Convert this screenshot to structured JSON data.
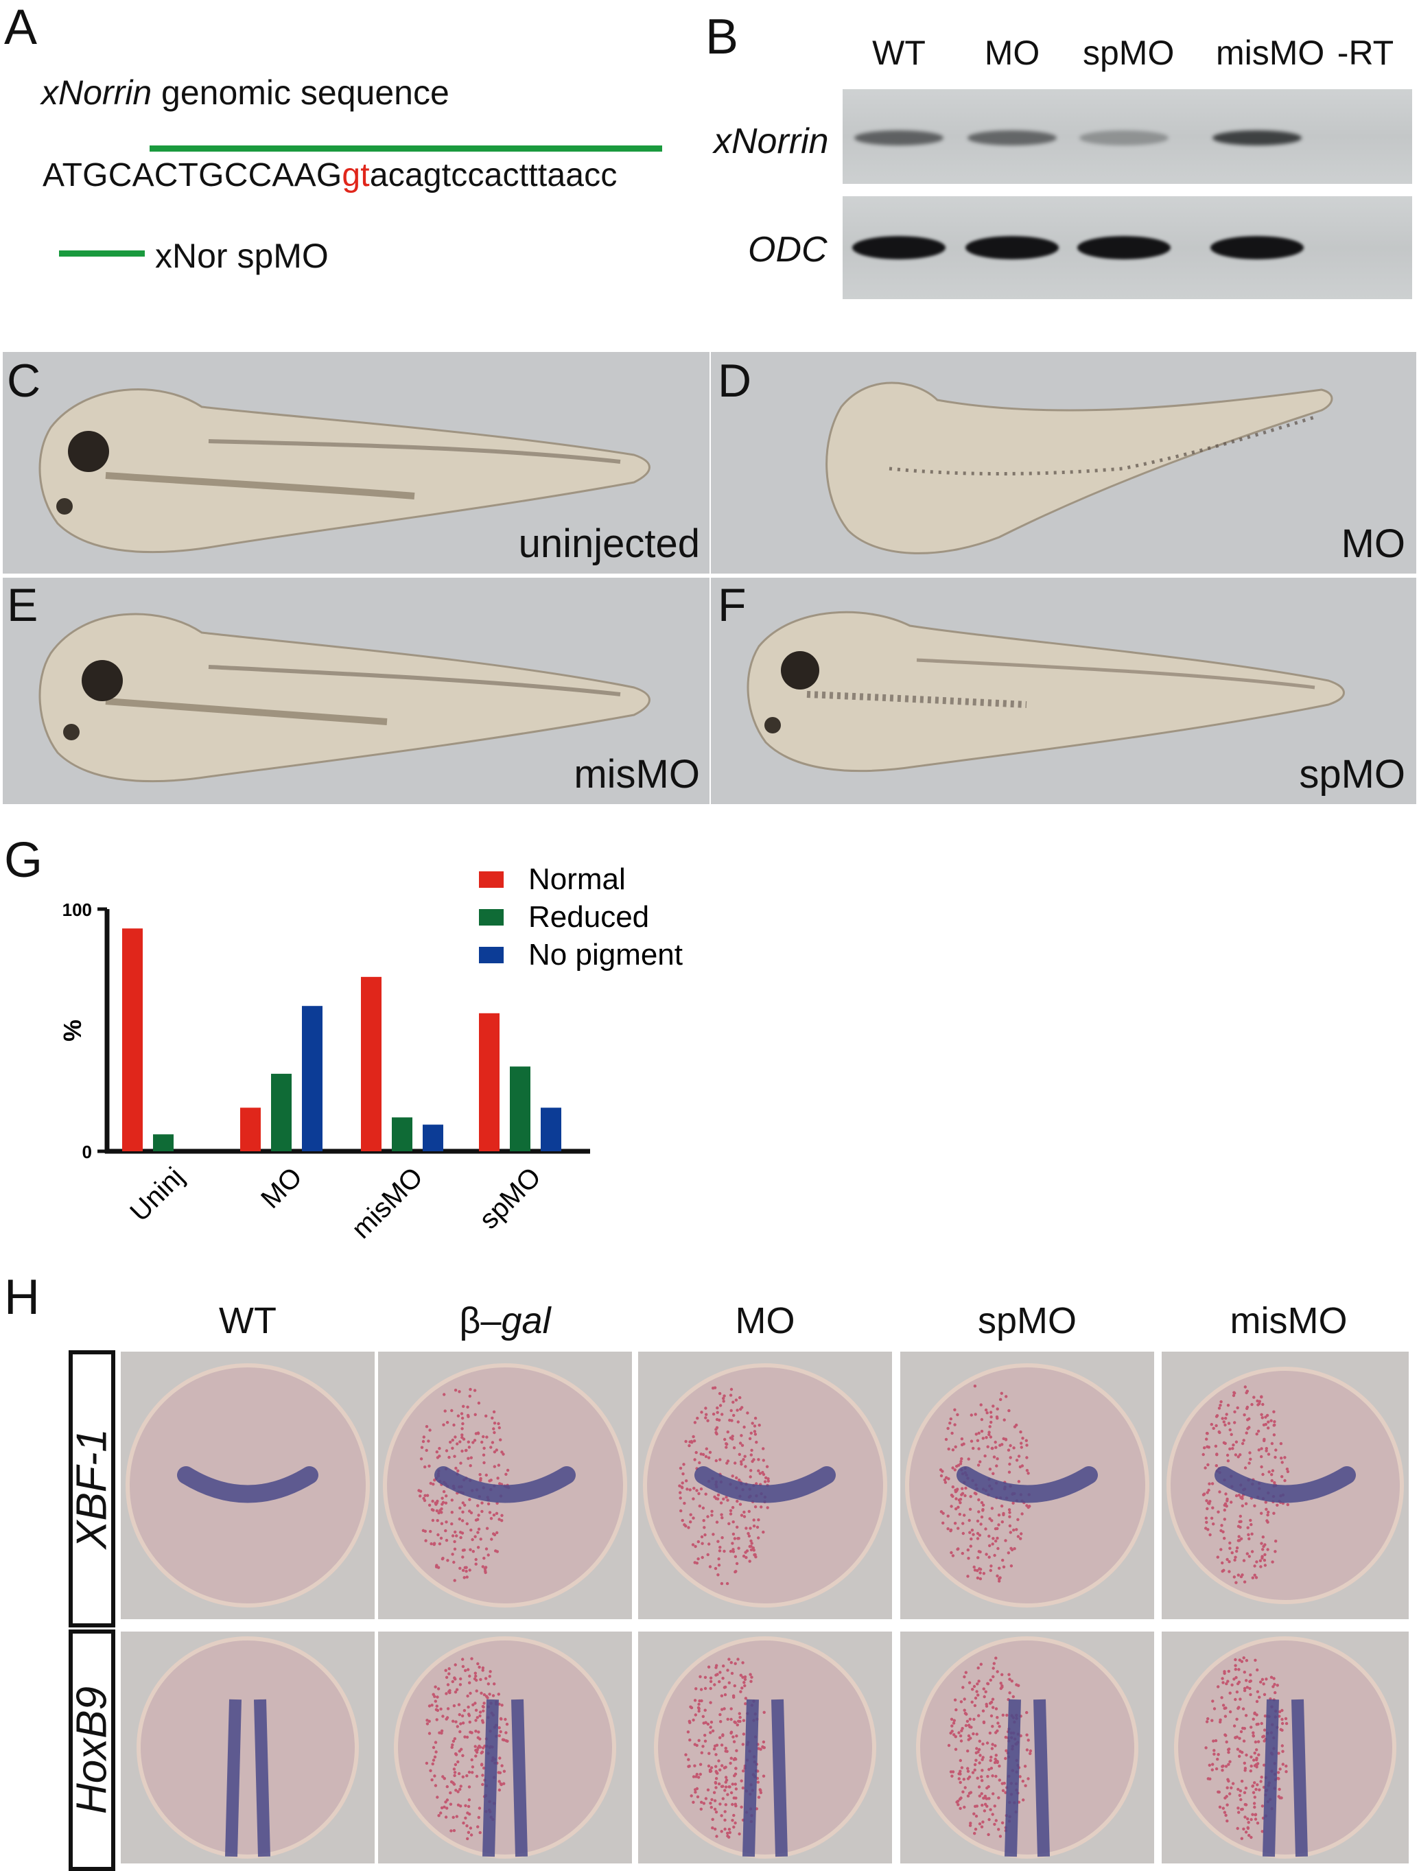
{
  "panel_labels": {
    "a": "A",
    "b": "B",
    "c": "C",
    "d": "D",
    "e": "E",
    "f": "F",
    "g": "G",
    "h": "H"
  },
  "panel_a": {
    "title_gene": "xNorrin",
    "title_rest": " genomic sequence",
    "seq_exon": "ATGCACTGCCAAG",
    "seq_splice": "gt",
    "seq_intron": "acagtccactttaacc",
    "legend": "xNor spMO",
    "mo_color": "#1a9a3e",
    "splice_color": "#e0261b"
  },
  "panel_b": {
    "lanes": [
      "WT",
      "MO",
      "spMO",
      "misMO",
      "-RT"
    ],
    "rows": [
      "xNorrin",
      "ODC"
    ],
    "xnorrin_band_intensity": [
      0.55,
      0.5,
      0.08,
      0.85,
      0.0
    ],
    "odc_band_intensity": [
      1.0,
      1.0,
      1.0,
      1.0,
      0.0
    ]
  },
  "panel_tadpoles": {
    "c_label": "uninjected",
    "d_label": "MO",
    "e_label": "misMO",
    "f_label": "spMO"
  },
  "chart_data": {
    "type": "bar",
    "categories": [
      "Uninj",
      "MO",
      "misMO",
      "spMO"
    ],
    "series": [
      {
        "name": "Normal",
        "color": "#e0261b",
        "values": [
          92,
          18,
          72,
          57
        ]
      },
      {
        "name": "Reduced",
        "color": "#0f6b36",
        "values": [
          7,
          32,
          14,
          35
        ]
      },
      {
        "name": "No pigment",
        "color": "#0c3c96",
        "values": [
          0,
          60,
          11,
          18
        ]
      }
    ],
    "ylabel": "%",
    "ylim": [
      0,
      100
    ],
    "yticks": [
      "0",
      "100"
    ],
    "legend_position": "top-right"
  },
  "panel_h": {
    "columns": [
      "WT",
      "β–gal",
      "MO",
      "spMO",
      "misMO"
    ],
    "column_italic_part": "gal",
    "rows": [
      "XBF-1",
      "HoxB9"
    ]
  }
}
